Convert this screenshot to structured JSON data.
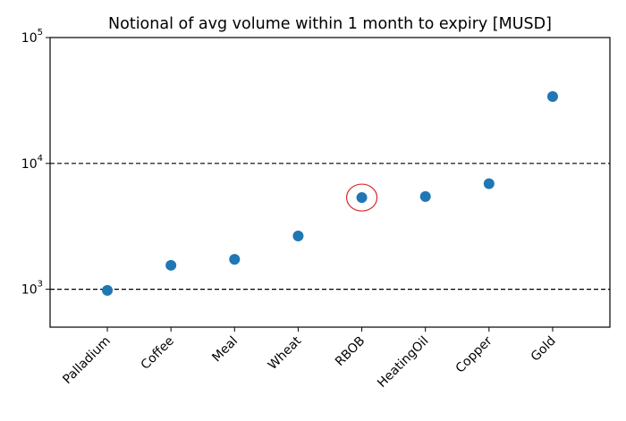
{
  "chart_data": {
    "type": "scatter",
    "title": "Notional of avg volume within 1 month to expiry [MUSD]",
    "xlabel": "",
    "ylabel": "",
    "categories": [
      "Palladium",
      "Coffee",
      "Meal",
      "Wheat",
      "RBOB",
      "HeatingOil",
      "Copper",
      "Gold"
    ],
    "values": [
      980,
      1550,
      1730,
      2650,
      5350,
      5450,
      6900,
      34000
    ],
    "yscale": "log",
    "ylim": [
      500,
      100000
    ],
    "yticks": [
      {
        "value": 1000,
        "base": "10",
        "exp": "3"
      },
      {
        "value": 10000,
        "base": "10",
        "exp": "4"
      },
      {
        "value": 100000,
        "base": "10",
        "exp": "5"
      }
    ],
    "hlines": [
      1000,
      10000
    ],
    "hline_style": "dashed",
    "highlight": "RBOB",
    "marker_color": "#1f77b4",
    "highlight_color": "#d62728",
    "grid": false
  }
}
